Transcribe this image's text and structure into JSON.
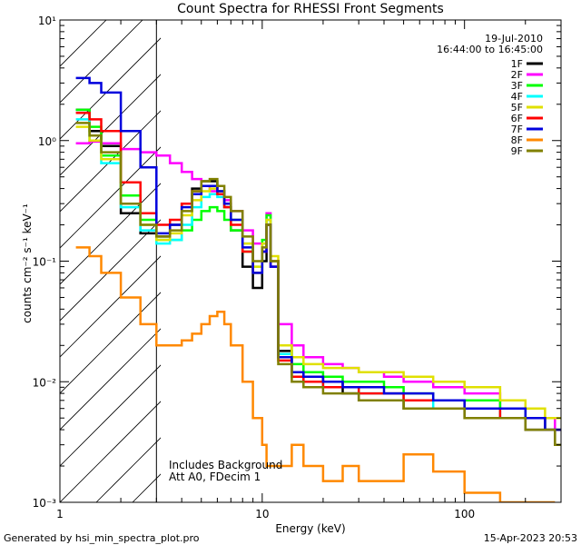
{
  "chart_data": {
    "type": "line",
    "title": "Count Spectra for RHESSI Front Segments",
    "xlabel": "Energy (keV)",
    "ylabel": "counts cm⁻² s⁻¹ keV⁻¹",
    "x_scale": "log",
    "y_scale": "log",
    "xlim": [
      1,
      300
    ],
    "ylim": [
      0.001,
      10
    ],
    "x_ticks": [
      1,
      10,
      100
    ],
    "x_tick_labels": [
      "1",
      "10",
      "100"
    ],
    "y_ticks": [
      0.001,
      0.01,
      0.1,
      1,
      10
    ],
    "y_tick_labels": [
      "10⁻³",
      "10⁻²",
      "10⁻¹",
      "10⁰",
      "10¹"
    ],
    "attenuator_cutoff_keV": 3,
    "shaded_region": "hatched region below 3 keV",
    "date": "19-Jul-2010",
    "time_range": "16:44:00 to 16:45:00",
    "annotations": [
      "Includes Background",
      "Att A0, FDecim 1"
    ],
    "legend_position": "top-right",
    "series": [
      {
        "name": "1F",
        "color": "#000000",
        "x": [
          1.2,
          1.4,
          1.6,
          2.0,
          2.5,
          3.0,
          3.5,
          4.0,
          4.5,
          5.0,
          5.5,
          6.0,
          6.5,
          7.0,
          8.0,
          9.0,
          10.0,
          10.5,
          11.0,
          12.0,
          14.0,
          16.0,
          20.0,
          25.0,
          30.0,
          40.0,
          50.0,
          70.0,
          100.0,
          150.0,
          200.0,
          250.0,
          280.0
        ],
        "values": [
          1.8,
          1.2,
          0.9,
          0.25,
          0.17,
          0.16,
          0.2,
          0.3,
          0.4,
          0.46,
          0.46,
          0.38,
          0.28,
          0.18,
          0.09,
          0.06,
          0.1,
          0.2,
          0.09,
          0.018,
          0.012,
          0.011,
          0.01,
          0.008,
          0.007,
          0.007,
          0.006,
          0.006,
          0.005,
          0.005,
          0.004,
          0.004,
          0.003
        ]
      },
      {
        "name": "2F",
        "color": "#ff00ff",
        "x": [
          1.2,
          1.4,
          1.6,
          2.0,
          2.5,
          3.0,
          3.5,
          4.0,
          4.5,
          5.0,
          5.5,
          6.0,
          6.5,
          7.0,
          8.0,
          9.0,
          10.0,
          10.5,
          11.0,
          12.0,
          14.0,
          16.0,
          20.0,
          25.0,
          30.0,
          40.0,
          50.0,
          70.0,
          100.0,
          150.0,
          200.0,
          250.0,
          280.0
        ],
        "values": [
          0.95,
          0.98,
          0.95,
          0.85,
          0.8,
          0.75,
          0.65,
          0.55,
          0.48,
          0.42,
          0.38,
          0.36,
          0.32,
          0.26,
          0.18,
          0.14,
          0.12,
          0.25,
          0.09,
          0.03,
          0.02,
          0.016,
          0.014,
          0.013,
          0.012,
          0.011,
          0.01,
          0.009,
          0.008,
          0.006,
          0.005,
          0.005,
          0.004
        ]
      },
      {
        "name": "3F",
        "color": "#00ff00",
        "x": [
          1.2,
          1.4,
          1.6,
          2.0,
          2.5,
          3.0,
          3.5,
          4.0,
          4.5,
          5.0,
          5.5,
          6.0,
          6.5,
          7.0,
          8.0,
          9.0,
          10.0,
          10.5,
          11.0,
          12.0,
          14.0,
          16.0,
          20.0,
          25.0,
          30.0,
          40.0,
          50.0,
          70.0,
          100.0,
          150.0,
          200.0,
          250.0,
          280.0
        ],
        "values": [
          1.8,
          1.3,
          0.75,
          0.35,
          0.22,
          0.15,
          0.15,
          0.18,
          0.22,
          0.26,
          0.28,
          0.26,
          0.22,
          0.18,
          0.12,
          0.08,
          0.15,
          0.24,
          0.1,
          0.02,
          0.014,
          0.012,
          0.011,
          0.01,
          0.01,
          0.009,
          0.008,
          0.007,
          0.007,
          0.006,
          0.005,
          0.004,
          0.004
        ]
      },
      {
        "name": "4F",
        "color": "#00ffff",
        "x": [
          1.2,
          1.4,
          1.6,
          2.0,
          2.5,
          3.0,
          3.5,
          4.0,
          4.5,
          5.0,
          5.5,
          6.0,
          6.5,
          7.0,
          8.0,
          9.0,
          10.0,
          10.5,
          11.0,
          12.0,
          14.0,
          16.0,
          20.0,
          25.0,
          30.0,
          40.0,
          50.0,
          70.0,
          100.0,
          150.0,
          200.0,
          250.0,
          280.0
        ],
        "values": [
          1.5,
          1.0,
          0.65,
          0.28,
          0.18,
          0.14,
          0.15,
          0.2,
          0.28,
          0.34,
          0.36,
          0.34,
          0.28,
          0.22,
          0.14,
          0.09,
          0.14,
          0.22,
          0.1,
          0.017,
          0.011,
          0.01,
          0.009,
          0.009,
          0.008,
          0.008,
          0.007,
          0.006,
          0.006,
          0.005,
          0.005,
          0.004,
          0.004
        ]
      },
      {
        "name": "5F",
        "color": "#e0e000",
        "x": [
          1.2,
          1.4,
          1.6,
          2.0,
          2.5,
          3.0,
          3.5,
          4.0,
          4.5,
          5.0,
          5.5,
          6.0,
          6.5,
          7.0,
          8.0,
          9.0,
          10.0,
          10.5,
          11.0,
          12.0,
          14.0,
          16.0,
          20.0,
          25.0,
          30.0,
          40.0,
          50.0,
          70.0,
          100.0,
          150.0,
          200.0,
          250.0,
          280.0
        ],
        "values": [
          1.3,
          1.0,
          0.7,
          0.3,
          0.2,
          0.15,
          0.17,
          0.24,
          0.32,
          0.38,
          0.4,
          0.38,
          0.3,
          0.22,
          0.14,
          0.09,
          0.14,
          0.22,
          0.11,
          0.02,
          0.016,
          0.014,
          0.013,
          0.013,
          0.012,
          0.012,
          0.011,
          0.01,
          0.009,
          0.007,
          0.006,
          0.005,
          0.005
        ]
      },
      {
        "name": "6F",
        "color": "#ff0000",
        "x": [
          1.2,
          1.4,
          1.6,
          2.0,
          2.5,
          3.0,
          3.5,
          4.0,
          4.5,
          5.0,
          5.5,
          6.0,
          6.5,
          7.0,
          8.0,
          9.0,
          10.0,
          10.5,
          11.0,
          12.0,
          14.0,
          16.0,
          20.0,
          25.0,
          30.0,
          40.0,
          50.0,
          70.0,
          100.0,
          150.0,
          200.0,
          250.0,
          280.0
        ],
        "values": [
          1.7,
          1.5,
          1.2,
          0.45,
          0.25,
          0.2,
          0.22,
          0.3,
          0.38,
          0.42,
          0.42,
          0.36,
          0.28,
          0.2,
          0.12,
          0.08,
          0.12,
          0.2,
          0.1,
          0.015,
          0.011,
          0.01,
          0.009,
          0.009,
          0.008,
          0.008,
          0.007,
          0.007,
          0.006,
          0.005,
          0.005,
          0.004,
          0.004
        ]
      },
      {
        "name": "7F",
        "color": "#0000dd",
        "x": [
          1.2,
          1.4,
          1.6,
          2.0,
          2.5,
          3.0,
          3.5,
          4.0,
          4.5,
          5.0,
          5.5,
          6.0,
          6.5,
          7.0,
          8.0,
          9.0,
          10.0,
          10.5,
          11.0,
          12.0,
          14.0,
          16.0,
          20.0,
          25.0,
          30.0,
          40.0,
          50.0,
          70.0,
          100.0,
          150.0,
          200.0,
          250.0,
          280.0
        ],
        "values": [
          3.3,
          3.0,
          2.5,
          1.2,
          0.6,
          0.17,
          0.2,
          0.28,
          0.36,
          0.42,
          0.42,
          0.38,
          0.3,
          0.22,
          0.13,
          0.08,
          0.12,
          0.2,
          0.09,
          0.016,
          0.012,
          0.011,
          0.01,
          0.009,
          0.009,
          0.008,
          0.008,
          0.007,
          0.006,
          0.006,
          0.005,
          0.004,
          0.004
        ]
      },
      {
        "name": "8F",
        "color": "#ff8800",
        "x": [
          1.2,
          1.4,
          1.6,
          2.0,
          2.5,
          3.0,
          3.5,
          4.0,
          4.5,
          5.0,
          5.5,
          6.0,
          6.5,
          7.0,
          8.0,
          9.0,
          10.0,
          10.5,
          11.0,
          12.0,
          14.0,
          16.0,
          20.0,
          25.0,
          30.0,
          40.0,
          50.0,
          70.0,
          100.0,
          150.0,
          200.0,
          250.0
        ],
        "values": [
          0.13,
          0.11,
          0.08,
          0.05,
          0.03,
          0.02,
          0.02,
          0.022,
          0.025,
          0.03,
          0.035,
          0.038,
          0.03,
          0.02,
          0.01,
          0.005,
          0.003,
          0.002,
          0.002,
          0.002,
          0.003,
          0.002,
          0.0015,
          0.002,
          0.0015,
          0.0015,
          0.0025,
          0.0018,
          0.0012,
          0.001,
          0.001,
          0.001
        ]
      },
      {
        "name": "9F",
        "color": "#808000",
        "x": [
          1.2,
          1.4,
          1.6,
          2.0,
          2.5,
          3.0,
          3.5,
          4.0,
          4.5,
          5.0,
          5.5,
          6.0,
          6.5,
          7.0,
          8.0,
          9.0,
          10.0,
          10.5,
          11.0,
          12.0,
          14.0,
          16.0,
          20.0,
          25.0,
          30.0,
          40.0,
          50.0,
          70.0,
          100.0,
          150.0,
          200.0,
          250.0,
          280.0
        ],
        "values": [
          1.4,
          1.1,
          0.8,
          0.3,
          0.2,
          0.16,
          0.18,
          0.26,
          0.38,
          0.46,
          0.48,
          0.42,
          0.34,
          0.26,
          0.16,
          0.1,
          0.13,
          0.2,
          0.1,
          0.014,
          0.01,
          0.009,
          0.008,
          0.008,
          0.007,
          0.007,
          0.006,
          0.006,
          0.005,
          0.005,
          0.004,
          0.004,
          0.003
        ]
      }
    ]
  },
  "footer": {
    "generated_by": "Generated by hsi_min_spectra_plot.pro",
    "timestamp": "15-Apr-2023 20:53"
  }
}
